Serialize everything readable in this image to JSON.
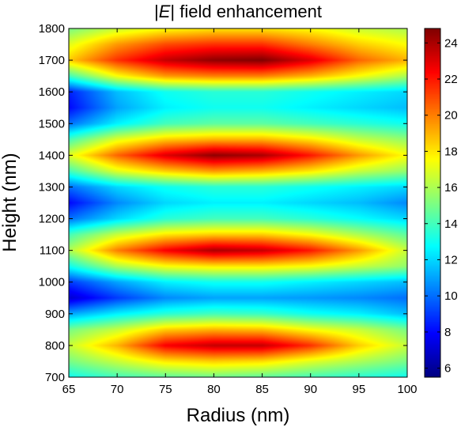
{
  "chart_data": {
    "type": "heatmap",
    "title_prefix": "|",
    "title_italic": "E",
    "title_suffix": "| field enhancement",
    "xlabel": "Radius (nm)",
    "ylabel": "Height (nm)",
    "xlim": [
      65,
      100
    ],
    "ylim": [
      700,
      1800
    ],
    "xticks": [
      65,
      70,
      75,
      80,
      85,
      90,
      95,
      100
    ],
    "yticks": [
      700,
      800,
      900,
      1000,
      1100,
      1200,
      1300,
      1400,
      1500,
      1600,
      1700,
      1800
    ],
    "colormap": "jet",
    "clim": [
      5.5,
      24.8
    ],
    "colorbar_ticks": [
      6,
      8,
      10,
      12,
      14,
      16,
      18,
      20,
      22,
      24
    ],
    "grid": false,
    "x": [
      65,
      70,
      75,
      80,
      85,
      90,
      95,
      100
    ],
    "y": [
      700,
      750,
      800,
      850,
      900,
      950,
      1000,
      1050,
      1100,
      1150,
      1200,
      1250,
      1300,
      1350,
      1400,
      1450,
      1500,
      1550,
      1600,
      1650,
      1700,
      1750,
      1800
    ],
    "z": [
      [
        13.0,
        14.0,
        14.5,
        14.8,
        14.5,
        14.0,
        13.5,
        13.0
      ],
      [
        15.0,
        16.5,
        18.0,
        18.5,
        18.2,
        17.0,
        16.0,
        15.0
      ],
      [
        16.5,
        19.0,
        22.5,
        23.5,
        23.5,
        21.5,
        18.5,
        16.5
      ],
      [
        15.0,
        16.5,
        18.5,
        19.0,
        18.8,
        17.5,
        16.5,
        15.0
      ],
      [
        11.0,
        12.5,
        13.5,
        14.0,
        13.8,
        13.0,
        12.5,
        11.5
      ],
      [
        7.0,
        9.0,
        10.5,
        11.0,
        11.0,
        10.8,
        10.5,
        10.0
      ],
      [
        9.0,
        11.0,
        12.5,
        13.0,
        13.0,
        12.5,
        12.0,
        11.5
      ],
      [
        13.0,
        16.0,
        17.5,
        18.0,
        18.0,
        17.5,
        16.5,
        15.5
      ],
      [
        16.0,
        20.0,
        22.5,
        24.0,
        23.5,
        22.0,
        19.5,
        16.5
      ],
      [
        14.0,
        16.5,
        18.0,
        18.5,
        18.5,
        17.5,
        16.0,
        14.5
      ],
      [
        10.0,
        12.0,
        13.5,
        14.0,
        14.0,
        13.5,
        12.8,
        12.0
      ],
      [
        8.0,
        10.5,
        12.0,
        12.5,
        12.5,
        12.0,
        11.5,
        10.5
      ],
      [
        10.0,
        12.0,
        13.0,
        13.5,
        13.5,
        13.0,
        12.5,
        12.0
      ],
      [
        14.0,
        17.0,
        18.5,
        19.5,
        19.0,
        18.0,
        16.5,
        15.5
      ],
      [
        17.0,
        20.5,
        23.0,
        24.5,
        24.0,
        22.0,
        19.5,
        17.5
      ],
      [
        14.0,
        17.0,
        18.5,
        19.0,
        19.0,
        18.0,
        16.5,
        15.5
      ],
      [
        10.0,
        12.5,
        14.0,
        14.5,
        14.5,
        14.0,
        13.5,
        13.0
      ],
      [
        8.0,
        11.0,
        12.5,
        13.0,
        13.0,
        12.5,
        12.0,
        11.5
      ],
      [
        8.5,
        11.5,
        13.0,
        13.5,
        13.5,
        13.0,
        12.5,
        12.0
      ],
      [
        14.0,
        17.5,
        19.5,
        20.0,
        20.0,
        19.0,
        17.5,
        16.0
      ],
      [
        18.5,
        21.5,
        23.5,
        24.5,
        24.8,
        23.0,
        20.5,
        19.0
      ],
      [
        17.0,
        19.5,
        21.0,
        21.5,
        21.5,
        20.0,
        18.5,
        17.5
      ],
      [
        15.0,
        16.5,
        17.5,
        18.0,
        18.0,
        17.5,
        16.5,
        16.0
      ]
    ]
  }
}
